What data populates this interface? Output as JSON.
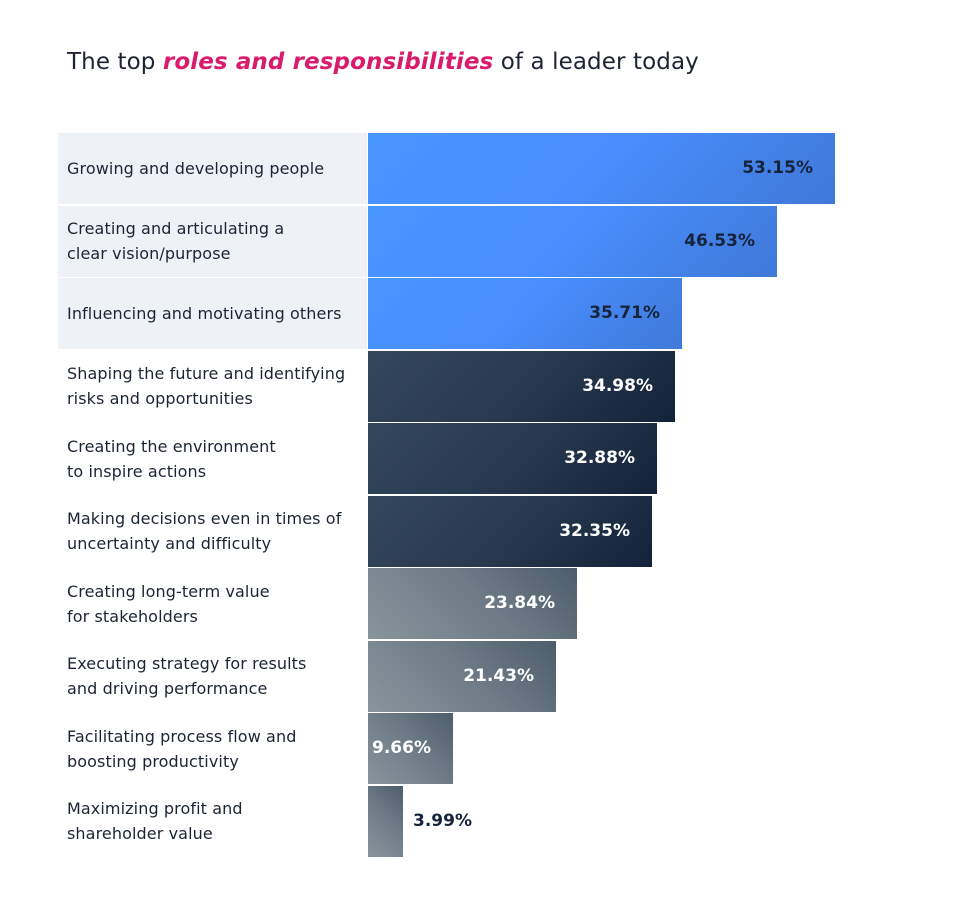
{
  "title": {
    "prefix": "The top ",
    "highlight": "roles and responsibilities",
    "suffix": " of a leader today"
  },
  "colors": {
    "highlight": "#d81b6c",
    "blue_bar": "#4a8eff",
    "navy_bar": "#283a4f",
    "gray_bar": "#6d7a86",
    "label_shade": "#eef2f7"
  },
  "chart_data": {
    "type": "bar",
    "orientation": "horizontal",
    "title": "The top roles and responsibilities of a leader today",
    "xlabel": "",
    "ylabel": "",
    "grid": false,
    "unit": "%",
    "categories": [
      "Growing and developing people",
      "Creating and articulating a\nclear vision/purpose",
      "Influencing and motivating others",
      "Shaping the future and identifying\nrisks and opportunities",
      "Creating the environment\nto inspire actions",
      "Making decisions even in times of\nuncertainty and difficulty",
      "Creating long-term value\nfor stakeholders",
      "Executing strategy for results\nand driving performance",
      "Facilitating process flow and\nboosting productivity",
      "Maximizing profit and\nshareholder value"
    ],
    "values": [
      53.15,
      46.53,
      35.71,
      34.98,
      32.88,
      32.35,
      23.84,
      21.43,
      9.66,
      3.99
    ],
    "value_labels": [
      "53.15%",
      "46.53%",
      "35.71%",
      "34.98%",
      "32.88%",
      "32.35%",
      "23.84%",
      "21.43%",
      "9.66%",
      "3.99%"
    ],
    "bar_groups": [
      "blue",
      "blue",
      "blue",
      "navy",
      "navy",
      "navy",
      "gray",
      "gray",
      "gray",
      "gray"
    ],
    "xlim": [
      0,
      53.15
    ]
  }
}
